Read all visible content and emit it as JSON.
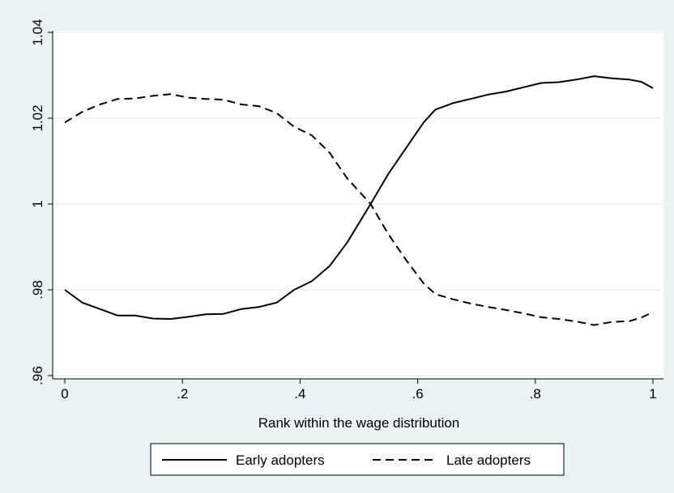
{
  "chart_data": {
    "type": "line",
    "title": "",
    "xlabel": "Rank within the wage distribution",
    "ylabel": "",
    "xlim": [
      0,
      1
    ],
    "ylim": [
      0.96,
      1.04
    ],
    "x_ticks": [
      0,
      0.2,
      0.4,
      0.6,
      0.8,
      1
    ],
    "x_tick_labels": [
      "0",
      ".2",
      ".4",
      ".6",
      ".8",
      "1"
    ],
    "y_ticks": [
      0.96,
      0.98,
      1,
      1.02,
      1.04
    ],
    "y_tick_labels": [
      ".96",
      ".98",
      "1",
      "1.02",
      "1.04"
    ],
    "grid": true,
    "legend_position": "bottom",
    "series": [
      {
        "name": "Early adopters",
        "style": "solid",
        "color": "#000000",
        "points": [
          [
            0,
            0.98
          ],
          [
            0.03,
            0.977
          ],
          [
            0.06,
            0.9755
          ],
          [
            0.09,
            0.974
          ],
          [
            0.12,
            0.974
          ],
          [
            0.15,
            0.9733
          ],
          [
            0.18,
            0.9732
          ],
          [
            0.21,
            0.9737
          ],
          [
            0.24,
            0.9743
          ],
          [
            0.27,
            0.9744
          ],
          [
            0.3,
            0.9755
          ],
          [
            0.33,
            0.976
          ],
          [
            0.36,
            0.977
          ],
          [
            0.39,
            0.98
          ],
          [
            0.42,
            0.982
          ],
          [
            0.45,
            0.9855
          ],
          [
            0.48,
            0.991
          ],
          [
            0.5,
            0.9955
          ],
          [
            0.52,
            1.0
          ],
          [
            0.55,
            1.007
          ],
          [
            0.58,
            1.013
          ],
          [
            0.61,
            1.019
          ],
          [
            0.63,
            1.022
          ],
          [
            0.66,
            1.0235
          ],
          [
            0.69,
            1.0245
          ],
          [
            0.72,
            1.0255
          ],
          [
            0.75,
            1.0262
          ],
          [
            0.78,
            1.0272
          ],
          [
            0.81,
            1.0282
          ],
          [
            0.84,
            1.0284
          ],
          [
            0.87,
            1.029
          ],
          [
            0.9,
            1.0298
          ],
          [
            0.93,
            1.0293
          ],
          [
            0.96,
            1.029
          ],
          [
            0.98,
            1.0285
          ],
          [
            1.0,
            1.027
          ]
        ]
      },
      {
        "name": "Late adopters",
        "style": "dashed",
        "color": "#000000",
        "points": [
          [
            0,
            1.019
          ],
          [
            0.03,
            1.0215
          ],
          [
            0.06,
            1.0232
          ],
          [
            0.09,
            1.0245
          ],
          [
            0.12,
            1.0246
          ],
          [
            0.15,
            1.0252
          ],
          [
            0.18,
            1.0256
          ],
          [
            0.21,
            1.0248
          ],
          [
            0.24,
            1.0245
          ],
          [
            0.27,
            1.0243
          ],
          [
            0.3,
            1.0232
          ],
          [
            0.33,
            1.0228
          ],
          [
            0.36,
            1.0212
          ],
          [
            0.39,
            1.018
          ],
          [
            0.42,
            1.016
          ],
          [
            0.45,
            1.012
          ],
          [
            0.48,
            1.006
          ],
          [
            0.5,
            1.003
          ],
          [
            0.52,
            1.0
          ],
          [
            0.55,
            0.993
          ],
          [
            0.58,
            0.987
          ],
          [
            0.61,
            0.9815
          ],
          [
            0.63,
            0.979
          ],
          [
            0.66,
            0.9778
          ],
          [
            0.69,
            0.9768
          ],
          [
            0.72,
            0.976
          ],
          [
            0.75,
            0.9753
          ],
          [
            0.78,
            0.9745
          ],
          [
            0.81,
            0.9736
          ],
          [
            0.84,
            0.9732
          ],
          [
            0.87,
            0.9726
          ],
          [
            0.9,
            0.9718
          ],
          [
            0.93,
            0.9725
          ],
          [
            0.96,
            0.9727
          ],
          [
            0.98,
            0.9735
          ],
          [
            1.0,
            0.9748
          ]
        ]
      }
    ]
  }
}
